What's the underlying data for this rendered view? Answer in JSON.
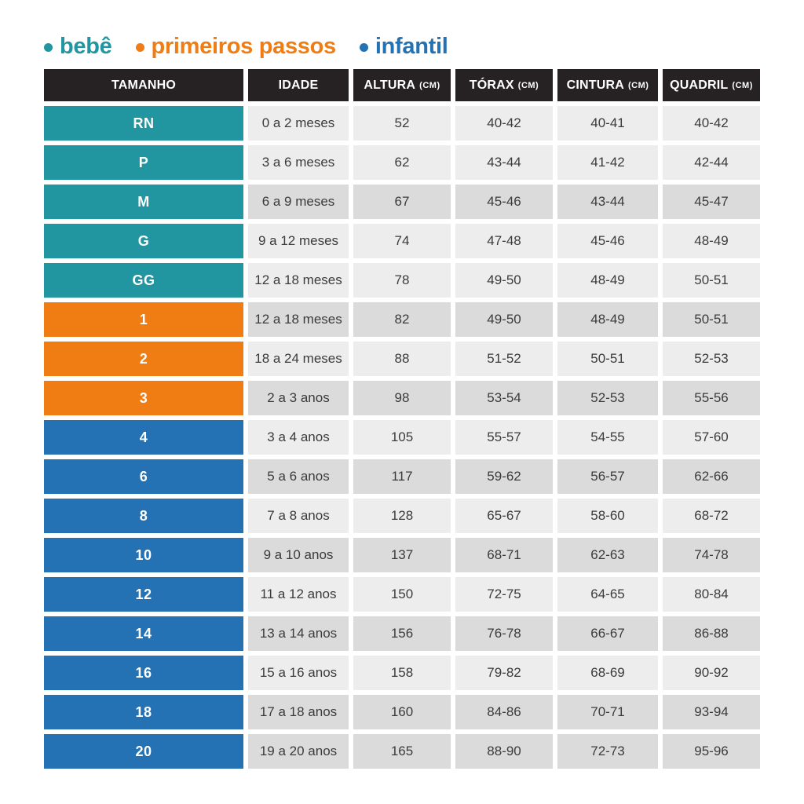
{
  "colors": {
    "bebe": "#2196a1",
    "primeiros_passos": "#ef7d13",
    "infantil": "#2472b4",
    "header_bg": "#262223",
    "row_light": "#ededed",
    "row_dark": "#dbdbdb",
    "body_text": "#3b3b3c"
  },
  "chart_data": {
    "type": "table",
    "legend": [
      {
        "label": "bebê",
        "color_key": "bebe"
      },
      {
        "label": "primeiros passos",
        "color_key": "primeiros_passos"
      },
      {
        "label": "infantil",
        "color_key": "infantil"
      }
    ],
    "columns": [
      {
        "label": "TAMANHO",
        "unit": ""
      },
      {
        "label": "IDADE",
        "unit": ""
      },
      {
        "label": "ALTURA",
        "unit": "(CM)"
      },
      {
        "label": "TÓRAX",
        "unit": "(CM)"
      },
      {
        "label": "CINTURA",
        "unit": "(CM)"
      },
      {
        "label": "QUADRIL",
        "unit": "(CM)"
      }
    ],
    "rows": [
      {
        "tamanho": "RN",
        "group": "bebe",
        "shade": "light",
        "idade": "0 a 2 meses",
        "altura": "52",
        "torax": "40-42",
        "cintura": "40-41",
        "quadril": "40-42"
      },
      {
        "tamanho": "P",
        "group": "bebe",
        "shade": "light",
        "idade": "3 a 6 meses",
        "altura": "62",
        "torax": "43-44",
        "cintura": "41-42",
        "quadril": "42-44"
      },
      {
        "tamanho": "M",
        "group": "bebe",
        "shade": "dark",
        "idade": "6 a 9 meses",
        "altura": "67",
        "torax": "45-46",
        "cintura": "43-44",
        "quadril": "45-47"
      },
      {
        "tamanho": "G",
        "group": "bebe",
        "shade": "light",
        "idade": "9 a 12 meses",
        "altura": "74",
        "torax": "47-48",
        "cintura": "45-46",
        "quadril": "48-49"
      },
      {
        "tamanho": "GG",
        "group": "bebe",
        "shade": "light",
        "idade": "12 a 18 meses",
        "altura": "78",
        "torax": "49-50",
        "cintura": "48-49",
        "quadril": "50-51"
      },
      {
        "tamanho": "1",
        "group": "primeiros_passos",
        "shade": "dark",
        "idade": "12 a 18 meses",
        "altura": "82",
        "torax": "49-50",
        "cintura": "48-49",
        "quadril": "50-51"
      },
      {
        "tamanho": "2",
        "group": "primeiros_passos",
        "shade": "light",
        "idade": "18 a 24 meses",
        "altura": "88",
        "torax": "51-52",
        "cintura": "50-51",
        "quadril": "52-53"
      },
      {
        "tamanho": "3",
        "group": "primeiros_passos",
        "shade": "dark",
        "idade": "2 a 3 anos",
        "altura": "98",
        "torax": "53-54",
        "cintura": "52-53",
        "quadril": "55-56"
      },
      {
        "tamanho": "4",
        "group": "infantil",
        "shade": "light",
        "idade": "3 a 4 anos",
        "altura": "105",
        "torax": "55-57",
        "cintura": "54-55",
        "quadril": "57-60"
      },
      {
        "tamanho": "6",
        "group": "infantil",
        "shade": "dark",
        "idade": "5 a 6 anos",
        "altura": "117",
        "torax": "59-62",
        "cintura": "56-57",
        "quadril": "62-66"
      },
      {
        "tamanho": "8",
        "group": "infantil",
        "shade": "light",
        "idade": "7 a 8 anos",
        "altura": "128",
        "torax": "65-67",
        "cintura": "58-60",
        "quadril": "68-72"
      },
      {
        "tamanho": "10",
        "group": "infantil",
        "shade": "dark",
        "idade": "9 a 10 anos",
        "altura": "137",
        "torax": "68-71",
        "cintura": "62-63",
        "quadril": "74-78"
      },
      {
        "tamanho": "12",
        "group": "infantil",
        "shade": "light",
        "idade": "11 a 12 anos",
        "altura": "150",
        "torax": "72-75",
        "cintura": "64-65",
        "quadril": "80-84"
      },
      {
        "tamanho": "14",
        "group": "infantil",
        "shade": "dark",
        "idade": "13 a 14 anos",
        "altura": "156",
        "torax": "76-78",
        "cintura": "66-67",
        "quadril": "86-88"
      },
      {
        "tamanho": "16",
        "group": "infantil",
        "shade": "light",
        "idade": "15 a 16 anos",
        "altura": "158",
        "torax": "79-82",
        "cintura": "68-69",
        "quadril": "90-92"
      },
      {
        "tamanho": "18",
        "group": "infantil",
        "shade": "dark",
        "idade": "17 a 18 anos",
        "altura": "160",
        "torax": "84-86",
        "cintura": "70-71",
        "quadril": "93-94"
      },
      {
        "tamanho": "20",
        "group": "infantil",
        "shade": "dark",
        "idade": "19 a 20 anos",
        "altura": "165",
        "torax": "88-90",
        "cintura": "72-73",
        "quadril": "95-96"
      }
    ]
  }
}
